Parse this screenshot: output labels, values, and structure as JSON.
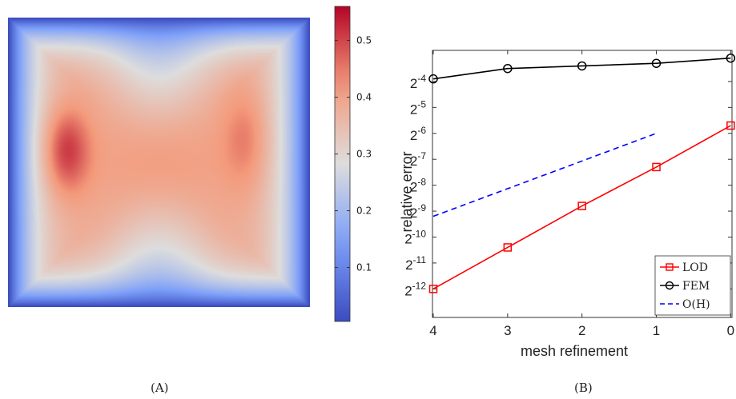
{
  "heatmap": {
    "colorbar_ticks": [
      "0.1",
      "0.2",
      "0.3",
      "0.4",
      "0.5"
    ],
    "colorbar_tick_values": [
      0.1,
      0.2,
      0.3,
      0.4,
      0.5
    ],
    "colorbar_range": [
      0.005,
      0.56
    ],
    "colormap": "coolwarm",
    "caption": "(A)"
  },
  "chart_data": {
    "type": "line",
    "title": "",
    "xlabel": "mesh refinement",
    "ylabel": "relative error",
    "x": [
      4,
      3,
      2,
      1,
      0
    ],
    "xticks": [
      "4",
      "3",
      "2",
      "1",
      "0"
    ],
    "x_direction": "reversed",
    "y_scale": "log2",
    "yticks": [
      "2",
      "2",
      "2",
      "2",
      "2",
      "2",
      "2",
      "2",
      "2"
    ],
    "ytick_exponents": [
      "-12",
      "-11",
      "-10",
      "-9",
      "-8",
      "-7",
      "-6",
      "-5",
      "-4"
    ],
    "ylim_exponent": [
      -13.1,
      -2.8
    ],
    "grid": false,
    "legend_position": "bottom-right",
    "series": [
      {
        "name": "LOD",
        "color": "#ff0000",
        "marker": "square",
        "dash": "solid",
        "x": [
          4,
          3,
          2,
          1,
          0
        ],
        "y_exponent": [
          -12.0,
          -10.4,
          -8.8,
          -7.3,
          -5.7
        ]
      },
      {
        "name": "FEM",
        "color": "#000000",
        "marker": "circle",
        "dash": "solid",
        "x": [
          4,
          3,
          2,
          1,
          0
        ],
        "y_exponent": [
          -3.9,
          -3.5,
          -3.4,
          -3.3,
          -3.1
        ]
      },
      {
        "name": "O(H)",
        "color": "#0000ff",
        "marker": "none",
        "dash": "dashed",
        "x": [
          4,
          1
        ],
        "y_exponent": [
          -9.2,
          -6.0
        ]
      }
    ],
    "caption": "(B)"
  }
}
